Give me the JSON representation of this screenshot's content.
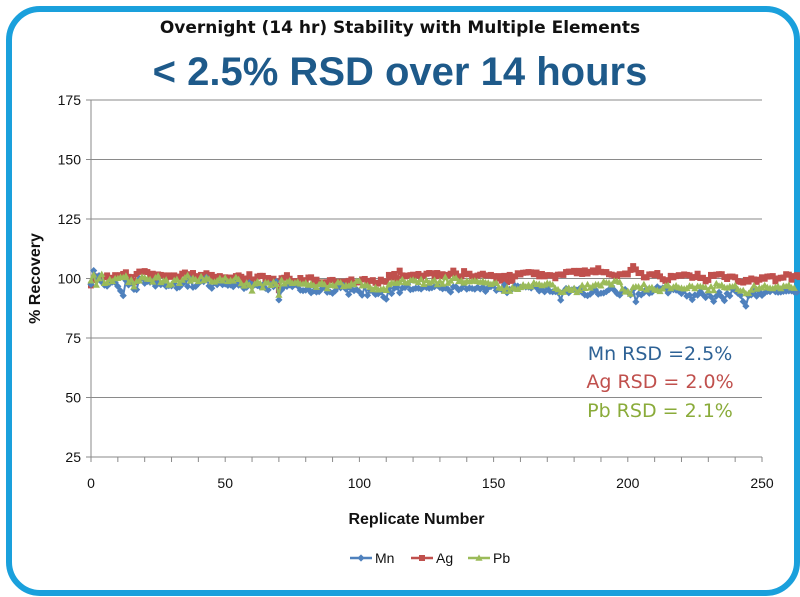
{
  "chart_data": {
    "type": "line",
    "title": "Overnight (14 hr) Stability with Multiple Elements",
    "subtitle": "< 2.5% RSD over 14 hours",
    "xlabel": "Replicate Number",
    "ylabel": "% Recovery",
    "xlim": [
      0,
      250
    ],
    "ylim": [
      25,
      175
    ],
    "xticks": [
      "0",
      "50",
      "100",
      "150",
      "200",
      "250"
    ],
    "yticks": [
      "25",
      "50",
      "75",
      "100",
      "125",
      "150",
      "175"
    ],
    "grid": true,
    "legend_position": "bottom",
    "series": [
      {
        "name": "Mn",
        "color": "#4f81bd",
        "marker": "diamond",
        "values": [
          97.5,
          103.3,
          100.6,
          101.2,
          98.5,
          97.2,
          96.8,
          97.9,
          98.5,
          98.3,
          96.7,
          94.8,
          92.8,
          99.1,
          97.3,
          98.2,
          95.4,
          95.3,
          99.9,
          100.2,
          98.0,
          98.8,
          98.4,
          98.7,
          96.8,
          98.2,
          97.4,
          97.9,
          96.7,
          97.0,
          96.9,
          98.1,
          96.0,
          96.4,
          97.6,
          99.1,
          96.7,
          99.8,
          96.3,
          96.7,
          97.9,
          99.0,
          98.7,
          100.5,
          96.9,
          95.9,
          98.2,
          97.4,
          99.1,
          97.4,
          97.7,
          97.1,
          97.3,
          96.6,
          98.2,
          97.2,
          97.2,
          95.8,
          96.3,
          98.2,
          97.5,
          97.3,
          97.0,
          96.5,
          97.3,
          95.9,
          95.2,
          97.6,
          96.6,
          98.7,
          91.0,
          95.2,
          96.7,
          96.7,
          97.3,
          96.6,
          97.9,
          96.9,
          95.1,
          94.9,
          95.1,
          95.6,
          94.0,
          94.8,
          94.3,
          94.5,
          95.7,
          96.2,
          94.2,
          94.4,
          93.8,
          94.8,
          96.5,
          96.1,
          97.1,
          95.5,
          93.3,
          95.6,
          94.9,
          95.4,
          94.4,
          93.0,
          96.6,
          92.9,
          95.0,
          94.6,
          93.3,
          93.6,
          94.4,
          92.2,
          91.3,
          95.8,
          93.7,
          95.9,
          96.4,
          94.0,
          96.0,
          96.2,
          97.7,
          95.3,
          95.5,
          95.9,
          95.9,
          95.6,
          96.5,
          96.2,
          95.9,
          96.1,
          96.6,
          97.2,
          96.2,
          95.7,
          96.0,
          95.5,
          94.3,
          96.5,
          96.5,
          95.2,
          95.8,
          97.6,
          95.5,
          96.0,
          95.8,
          95.5,
          96.3,
          95.6,
          96.4,
          94.6,
          96.1,
          96.6,
          97.1,
          95.0,
          95.7,
          95.3,
          97.3,
          94.0,
          95.4,
          95.6,
          96.9,
          96.8,
          96.4,
          96.7,
          96.4,
          96.4,
          96.0,
          96.8,
          96.2,
          94.8,
          95.4,
          94.4,
          96.3,
          94.6,
          94.4,
          94.5,
          94.1,
          90.9,
          94.4,
          95.8,
          94.0,
          95.2,
          95.7,
          95.1,
          95.7,
          94.1,
          93.1,
          92.8,
          93.4,
          94.4,
          95.1,
          93.4,
          93.8,
          93.9,
          94.5,
          95.3,
          96.8,
          95.0,
          93.7,
          93.0,
          94.6,
          95.4,
          94.3,
          93.1,
          95.4,
          90.2,
          93.5,
          93.1,
          94.0,
          95.6,
          93.8,
          94.2,
          95.4,
          96.5,
          95.7,
          96.0,
          95.7,
          93.9,
          95.3,
          95.3,
          95.1,
          94.7,
          93.7,
          95.1,
          92.6,
          93.0,
          91.1,
          93.1,
          93.0,
          94.6,
          93.2,
          92.0,
          94.2,
          92.3,
          90.4,
          92.6,
          94.2,
          92.3,
          90.7,
          93.7,
          92.7,
          95.6,
          94.8,
          93.8,
          92.9,
          90.3,
          88.4,
          92.7,
          93.1,
          94.7,
          92.6,
          94.5,
          92.9,
          93.9,
          94.6,
          94.5,
          95.5,
          94.4,
          94.2,
          94.3,
          94.6,
          94.7,
          94.8,
          94.8,
          94.3,
          94.2
        ]
      },
      {
        "name": "Ag",
        "color": "#c0504d",
        "marker": "square",
        "values": [
          97.1,
          99.3,
          100.9,
          99.7,
          100.1,
          100.5,
          101.3,
          98.6,
          100.3,
          101.4,
          100.9,
          101.4,
          101.9,
          102.6,
          100.7,
          100.6,
          98.4,
          101.9,
          102.9,
          102.8,
          103.1,
          102.7,
          101.2,
          102.0,
          99.5,
          101.7,
          101.5,
          101.3,
          100.4,
          101.3,
          100.7,
          101.3,
          100.8,
          100.6,
          102.0,
          102.5,
          101.8,
          100.6,
          102.3,
          100.2,
          101.0,
          101.5,
          100.6,
          102.2,
          100.6,
          101.5,
          99.8,
          100.7,
          101.0,
          100.1,
          100.5,
          99.6,
          100.4,
          100.1,
          101.0,
          101.3,
          100.7,
          98.6,
          100.0,
          101.8,
          99.6,
          98.4,
          100.8,
          101.1,
          101.1,
          99.8,
          100.2,
          99.0,
          99.9,
          98.7,
          95.1,
          100.1,
          100.3,
          101.4,
          99.9,
          98.9,
          97.4,
          98.9,
          100.2,
          99.3,
          99.1,
          100.4,
          100.5,
          98.7,
          99.5,
          98.4,
          98.1,
          98.4,
          98.4,
          99.3,
          99.4,
          98.4,
          98.7,
          97.6,
          98.7,
          98.6,
          99.0,
          99.6,
          98.2,
          98.4,
          98.4,
          99.6,
          99.8,
          98.6,
          99.0,
          99.3,
          98.2,
          97.9,
          99.5,
          98.8,
          98.6,
          101.5,
          100.4,
          101.9,
          99.8,
          103.3,
          101.3,
          100.9,
          101.2,
          101.4,
          101.6,
          101.2,
          101.9,
          100.4,
          101.2,
          102.0,
          102.3,
          102.2,
          100.9,
          102.3,
          101.0,
          101.8,
          101.5,
          101.2,
          102.0,
          103.3,
          102.1,
          100.7,
          100.9,
          103.1,
          101.8,
          102.0,
          100.9,
          100.7,
          101.2,
          101.6,
          102.0,
          101.3,
          101.2,
          101.5,
          101.0,
          100.0,
          101.0,
          99.1,
          101.1,
          98.5,
          101.5,
          99.0,
          100.9,
          102.2,
          101.7,
          102.4,
          102.5,
          102.7,
          102.6,
          101.8,
          102.5,
          100.9,
          101.9,
          100.9,
          101.4,
          101.4,
          101.2,
          100.1,
          101.6,
          101.7,
          101.5,
          102.7,
          102.9,
          102.8,
          103.2,
          102.2,
          103.2,
          101.9,
          103.4,
          102.1,
          102.8,
          103.4,
          102.6,
          104.3,
          102.8,
          102.6,
          102.7,
          101.8,
          101.6,
          101.3,
          101.0,
          101.8,
          101.7,
          102.1,
          101.7,
          103.6,
          105.2,
          103.8,
          102.3,
          102.3,
          100.5,
          100.5,
          101.7,
          101.8,
          101.4,
          102.3,
          100.9,
          99.7,
          99.0,
          99.3,
          101.1,
          100.5,
          101.0,
          101.4,
          101.2,
          101.7,
          101.5,
          101.3,
          100.3,
          100.6,
          102.0,
          100.2,
          100.3,
          98.8,
          99.4,
          101.5,
          101.1,
          101.6,
          101.8,
          101.8,
          100.6,
          99.8,
          100.8,
          100.8,
          100.5,
          98.9,
          98.6,
          98.3,
          99.4,
          98.7,
          100.0,
          99.6,
          98.6,
          99.5,
          100.5,
          99.9,
          100.8,
          100.9,
          101.0,
          98.8,
          100.0,
          100.3,
          100.4,
          101.8,
          101.6,
          99.5,
          101.0,
          101.4,
          100.6
        ]
      },
      {
        "name": "Pb",
        "color": "#9bbb59",
        "marker": "triangle",
        "values": [
          99.1,
          101.6,
          97.3,
          100.0,
          101.8,
          98.0,
          98.3,
          99.7,
          98.8,
          100.0,
          100.1,
          100.6,
          100.5,
          101.1,
          98.4,
          99.5,
          96.6,
          98.9,
          99.1,
          100.7,
          100.4,
          99.8,
          99.7,
          98.6,
          100.4,
          101.1,
          98.4,
          99.0,
          99.5,
          97.3,
          97.7,
          99.3,
          99.7,
          98.0,
          99.4,
          100.4,
          101.4,
          99.0,
          100.2,
          99.6,
          98.8,
          100.9,
          99.2,
          100.4,
          99.8,
          98.7,
          98.6,
          99.1,
          100.1,
          99.1,
          100.3,
          98.8,
          99.3,
          99.0,
          100.5,
          99.7,
          97.9,
          96.9,
          98.2,
          97.3,
          94.8,
          97.8,
          98.7,
          98.0,
          96.2,
          98.4,
          98.2,
          97.2,
          98.6,
          97.6,
          93.1,
          99.4,
          97.8,
          98.6,
          99.1,
          98.0,
          98.2,
          98.6,
          97.8,
          97.7,
          98.2,
          97.3,
          97.8,
          97.2,
          96.4,
          97.6,
          98.4,
          97.5,
          95.8,
          97.2,
          97.3,
          96.9,
          98.5,
          98.3,
          96.7,
          97.2,
          96.9,
          97.9,
          97.5,
          98.9,
          99.0,
          97.0,
          97.3,
          97.1,
          96.4,
          95.4,
          96.3,
          95.3,
          95.5,
          95.8,
          95.1,
          97.5,
          98.2,
          98.1,
          98.1,
          98.5,
          99.6,
          98.4,
          98.2,
          99.3,
          99.5,
          99.0,
          98.4,
          99.7,
          97.6,
          99.3,
          98.2,
          98.7,
          99.4,
          97.5,
          98.9,
          97.7,
          100.6,
          98.1,
          99.0,
          100.1,
          100.2,
          98.8,
          99.1,
          98.2,
          99.0,
          98.7,
          98.9,
          99.1,
          98.8,
          98.5,
          98.9,
          98.3,
          98.2,
          97.6,
          98.1,
          98.2,
          96.2,
          95.9,
          94.7,
          96.3,
          94.7,
          96.3,
          95.7,
          95.5,
          96.3,
          97.4,
          96.6,
          97.3,
          96.6,
          98.3,
          97.6,
          97.7,
          97.1,
          97.4,
          98.1,
          97.8,
          97.4,
          95.9,
          95.4,
          94.2,
          94.3,
          95.6,
          96.0,
          95.1,
          95.9,
          94.2,
          95.1,
          97.2,
          95.9,
          97.5,
          96.1,
          96.9,
          97.5,
          97.5,
          97.0,
          98.7,
          98.3,
          98.2,
          97.4,
          99.0,
          98.9,
          98.5,
          95.7,
          94.4,
          94.7,
          93.5,
          96.4,
          96.6,
          96.6,
          95.9,
          97.6,
          95.3,
          96.1,
          96.3,
          95.3,
          95.1,
          94.6,
          95.7,
          96.9,
          97.2,
          95.8,
          96.5,
          97.0,
          96.2,
          96.0,
          95.7,
          95.9,
          96.9,
          96.7,
          95.8,
          96.8,
          96.7,
          96.5,
          96.3,
          95.0,
          96.6,
          95.0,
          97.9,
          96.9,
          97.3,
          96.3,
          96.1,
          96.7,
          96.6,
          97.1,
          95.5,
          94.8,
          95.0,
          93.7,
          93.8,
          95.2,
          97.0,
          95.6,
          96.1,
          96.1,
          97.1,
          96.3,
          96.0,
          95.8,
          96.4,
          96.7,
          95.8,
          96.9,
          96.7,
          97.3,
          96.2,
          96.0
        ]
      }
    ],
    "annotations": [
      {
        "text": "Mn RSD =2.5%",
        "color": "#2e6295"
      },
      {
        "text": "Ag RSD = 2.0%",
        "color": "#c0504d"
      },
      {
        "text": "Pb RSD = 2.1%",
        "color": "#8aab3a"
      }
    ]
  }
}
